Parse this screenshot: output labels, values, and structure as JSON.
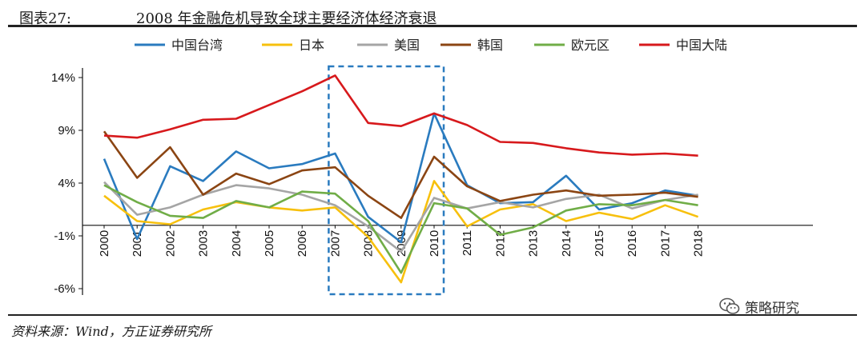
{
  "figure": {
    "label": "图表27:",
    "title": "2008 年金融危机导致全球主要经济体经济衰退"
  },
  "source": "资料来源：Wind，方正证券研究所",
  "watermark": {
    "text": "策略研究",
    "icon": "wechat-icon"
  },
  "chart_data": {
    "type": "line",
    "x": [
      "2000",
      "2001",
      "2002",
      "2003",
      "2004",
      "2005",
      "2006",
      "2007",
      "2008",
      "2009",
      "2010",
      "2011",
      "2012",
      "2013",
      "2014",
      "2015",
      "2016",
      "2017",
      "2018"
    ],
    "y_ticks": [
      "14%",
      "9%",
      "4%",
      "-1%",
      "-6%"
    ],
    "ylim": [
      -6,
      15
    ],
    "grid": false,
    "legend_position": "top",
    "highlight_range": [
      "2007",
      "2010"
    ],
    "series": [
      {
        "name": "中国台湾",
        "color": "#2a7bbf",
        "values": [
          6.3,
          -1.3,
          5.6,
          4.2,
          7.0,
          5.4,
          5.8,
          6.8,
          0.8,
          -1.6,
          10.6,
          3.8,
          2.1,
          2.2,
          4.7,
          1.5,
          2.1,
          3.3,
          2.8
        ]
      },
      {
        "name": "日本",
        "color": "#f7c00d",
        "values": [
          2.8,
          0.4,
          0.1,
          1.5,
          2.2,
          1.7,
          1.4,
          1.7,
          -1.1,
          -5.4,
          4.2,
          -0.1,
          1.5,
          2.0,
          0.4,
          1.2,
          0.6,
          1.9,
          0.8
        ]
      },
      {
        "name": "美国",
        "color": "#a5a5a5",
        "values": [
          4.1,
          1.0,
          1.7,
          2.9,
          3.8,
          3.5,
          2.9,
          1.9,
          -0.1,
          -2.5,
          2.6,
          1.6,
          2.2,
          1.7,
          2.5,
          2.9,
          1.6,
          2.4,
          2.9
        ]
      },
      {
        "name": "韩国",
        "color": "#8b4513",
        "values": [
          8.9,
          4.5,
          7.4,
          2.9,
          4.9,
          3.9,
          5.2,
          5.5,
          2.8,
          0.7,
          6.5,
          3.7,
          2.3,
          2.9,
          3.3,
          2.8,
          2.9,
          3.1,
          2.7
        ]
      },
      {
        "name": "欧元区",
        "color": "#70ad47",
        "values": [
          3.8,
          2.2,
          0.9,
          0.7,
          2.3,
          1.7,
          3.2,
          3.0,
          0.4,
          -4.5,
          2.1,
          1.6,
          -0.9,
          -0.2,
          1.4,
          2.0,
          1.9,
          2.4,
          1.9
        ]
      },
      {
        "name": "中国大陆",
        "color": "#d7191c",
        "values": [
          8.5,
          8.3,
          9.1,
          10.0,
          10.1,
          11.4,
          12.7,
          14.2,
          9.7,
          9.4,
          10.6,
          9.5,
          7.9,
          7.8,
          7.3,
          6.9,
          6.7,
          6.8,
          6.6
        ]
      }
    ]
  }
}
